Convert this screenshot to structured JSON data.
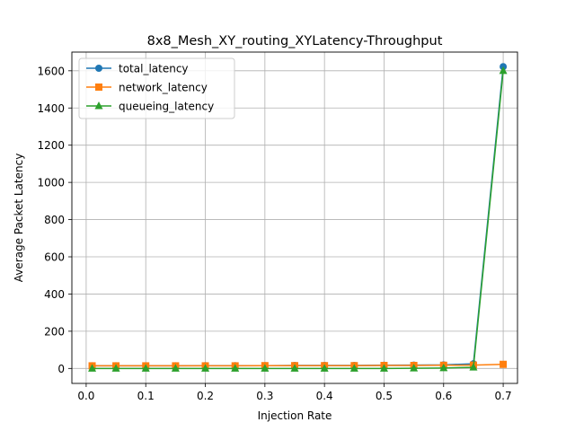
{
  "chart_data": {
    "type": "line",
    "title": "8x8_Mesh_XY_routing_XYLatency-Throughput",
    "xlabel": "Injection Rate",
    "ylabel": "Average Packet Latency",
    "xlim": [
      -0.024,
      0.724
    ],
    "ylim": [
      -80.5,
      1700.5
    ],
    "xticks": [
      "0.0",
      "0.1",
      "0.2",
      "0.3",
      "0.4",
      "0.5",
      "0.6",
      "0.7"
    ],
    "xtick_values": [
      0.0,
      0.1,
      0.2,
      0.3,
      0.4,
      0.5,
      0.6,
      0.7
    ],
    "yticks": [
      "0",
      "200",
      "400",
      "600",
      "800",
      "1000",
      "1200",
      "1400",
      "1600"
    ],
    "ytick_values": [
      0,
      200,
      400,
      600,
      800,
      1000,
      1200,
      1400,
      1600
    ],
    "grid": true,
    "legend_position": "upper-left",
    "x": [
      0.01,
      0.05,
      0.1,
      0.15,
      0.2,
      0.25,
      0.3,
      0.35,
      0.4,
      0.45,
      0.5,
      0.55,
      0.6,
      0.65,
      0.7
    ],
    "series": [
      {
        "name": "total_latency",
        "color": "#1f77b4",
        "marker": "circle",
        "values": [
          14,
          14,
          14,
          14,
          15,
          15,
          15,
          16,
          16,
          16,
          17,
          18,
          19,
          25,
          1622
        ]
      },
      {
        "name": "network_latency",
        "color": "#ff7f0e",
        "marker": "square",
        "values": [
          14,
          14,
          14,
          14,
          14,
          14,
          15,
          15,
          15,
          15,
          16,
          16,
          17,
          18,
          22
        ]
      },
      {
        "name": "queueing_latency",
        "color": "#2ca02c",
        "marker": "triangle",
        "values": [
          0,
          0,
          0,
          0,
          0,
          0,
          0,
          0,
          0,
          0,
          0,
          1,
          2,
          6,
          1600
        ]
      }
    ]
  }
}
